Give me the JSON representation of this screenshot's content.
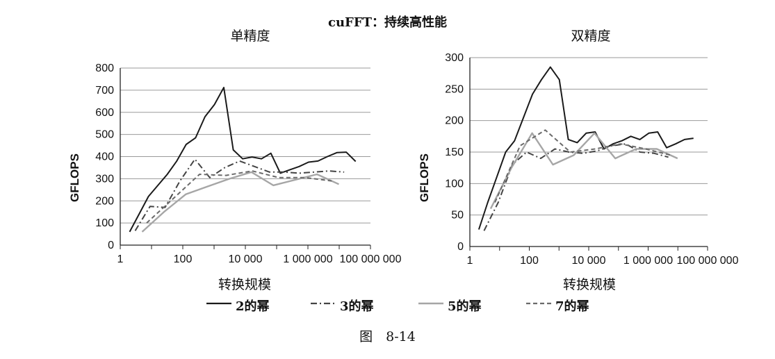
{
  "title": "cuFFT：持续高性能",
  "caption": "图　8-14",
  "legend": [
    {
      "label": "2的幂",
      "color": "#1a1a1a",
      "dash": "solid"
    },
    {
      "label": "3的幂",
      "color": "#444444",
      "dash": "dashdot"
    },
    {
      "label": "5的幂",
      "color": "#a6a6a6",
      "dash": "solid"
    },
    {
      "label": "7的幂",
      "color": "#6a6a6a",
      "dash": "dashed"
    }
  ],
  "chart_data": [
    {
      "type": "line",
      "title": "单精度",
      "xlabel": "转换规模",
      "ylabel": "GFLOPS",
      "xscale": "log",
      "xlim": [
        1,
        100000000
      ],
      "ylim": [
        0,
        800
      ],
      "yticks": [
        0,
        100,
        200,
        300,
        400,
        500,
        600,
        700,
        800
      ],
      "xticks": [
        1,
        100,
        10000,
        1000000,
        100000000
      ],
      "xtick_labels": [
        "1",
        "100",
        "10 000",
        "1 000 000",
        "100 000 000"
      ],
      "grid": true,
      "series": [
        {
          "name": "2的幂",
          "x": [
            2,
            4,
            8,
            16,
            32,
            64,
            128,
            256,
            512,
            1024,
            2048,
            4096,
            8192,
            16384,
            32768,
            65536,
            131072,
            262144,
            524288,
            1048576,
            2097152,
            4194304,
            8388608,
            16777216,
            33554432
          ],
          "y": [
            60,
            140,
            220,
            270,
            320,
            380,
            455,
            485,
            580,
            635,
            712,
            430,
            390,
            398,
            390,
            415,
            325,
            340,
            355,
            375,
            380,
            400,
            418,
            420,
            378
          ]
        },
        {
          "name": "3的幂",
          "x": [
            3,
            9,
            27,
            81,
            243,
            729,
            2187,
            6561,
            19683,
            59049,
            177147,
            531441,
            1594323,
            4782969,
            14348907
          ],
          "y": [
            65,
            175,
            170,
            290,
            388,
            305,
            350,
            380,
            355,
            330,
            330,
            325,
            330,
            335,
            330
          ]
        },
        {
          "name": "5的幂",
          "x": [
            5,
            25,
            125,
            625,
            3125,
            15625,
            78125,
            390625,
            1953125,
            9765625
          ],
          "y": [
            60,
            150,
            230,
            265,
            300,
            330,
            270,
            295,
            320,
            275
          ]
        },
        {
          "name": "7的幂",
          "x": [
            7,
            49,
            343,
            2401,
            16807,
            117649,
            823543,
            5764801
          ],
          "y": [
            100,
            210,
            320,
            315,
            335,
            305,
            305,
            290
          ]
        }
      ]
    },
    {
      "type": "line",
      "title": "双精度",
      "xlabel": "转换规模",
      "ylabel": "GFLOPS",
      "xscale": "log",
      "xlim": [
        1,
        100000000
      ],
      "ylim": [
        0,
        300
      ],
      "yticks": [
        0,
        50,
        100,
        150,
        200,
        250,
        300
      ],
      "xticks": [
        1,
        100,
        10000,
        1000000,
        100000000
      ],
      "xtick_labels": [
        "1",
        "100",
        "10 000",
        "1 000 000",
        "100 000 000"
      ],
      "grid": true,
      "series": [
        {
          "name": "2的幂",
          "x": [
            2,
            4,
            8,
            16,
            32,
            64,
            128,
            256,
            512,
            1024,
            2048,
            4096,
            8192,
            16384,
            32768,
            65536,
            131072,
            262144,
            524288,
            1048576,
            2097152,
            4194304,
            8388608,
            16777216,
            33554432
          ],
          "y": [
            27,
            70,
            110,
            150,
            168,
            205,
            242,
            265,
            285,
            265,
            170,
            165,
            180,
            182,
            155,
            163,
            168,
            175,
            170,
            180,
            182,
            157,
            163,
            170,
            172
          ]
        },
        {
          "name": "3的幂",
          "x": [
            3,
            9,
            27,
            81,
            243,
            729,
            2187,
            6561,
            19683,
            59049,
            177147,
            531441,
            1594323,
            4782969
          ],
          "y": [
            25,
            70,
            130,
            150,
            140,
            155,
            150,
            148,
            152,
            160,
            163,
            150,
            148,
            142
          ]
        },
        {
          "name": "5的幂",
          "x": [
            5,
            25,
            125,
            625,
            3125,
            15625,
            78125,
            390625,
            1953125,
            9765625
          ],
          "y": [
            60,
            125,
            180,
            130,
            145,
            180,
            140,
            155,
            155,
            140
          ]
        },
        {
          "name": "7的幂",
          "x": [
            7,
            49,
            343,
            2401,
            16807,
            117649,
            823543,
            5764801
          ],
          "y": [
            70,
            160,
            185,
            150,
            155,
            163,
            155,
            145
          ]
        }
      ]
    }
  ]
}
